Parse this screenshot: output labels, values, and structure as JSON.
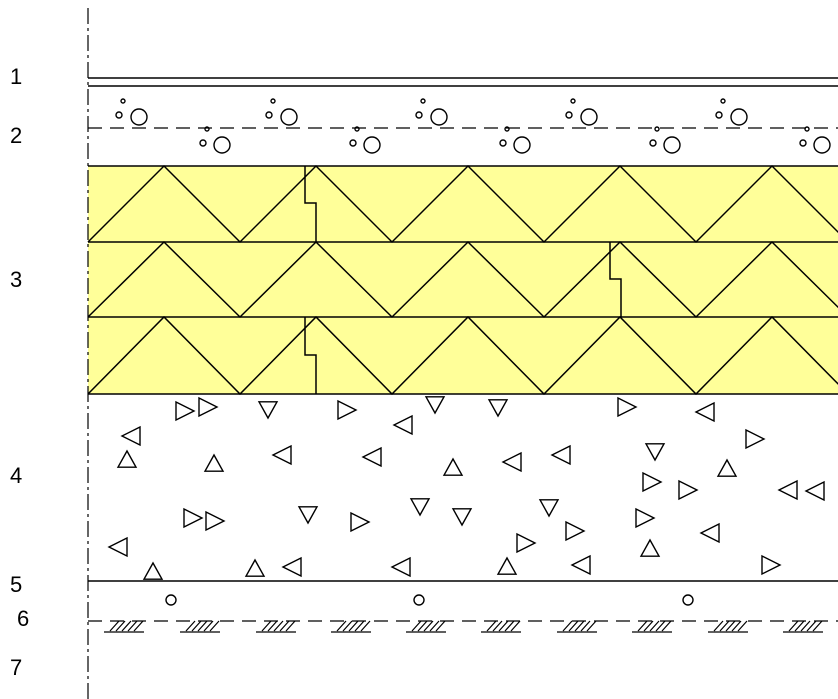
{
  "diagram": {
    "layer_labels": [
      "1",
      "2",
      "3",
      "4",
      "5",
      "6",
      "7"
    ],
    "colors": {
      "line": "#000000",
      "insulation_fill": "#ffff99",
      "background": "#ffffff"
    },
    "symbols": {
      "layer_2": "pebble-circles",
      "layer_3": "zigzag-insulation-boards",
      "layer_4": "scattered-triangles-aggregate",
      "layer_6": "small-circles",
      "layer_7": "earth-hatch"
    }
  }
}
